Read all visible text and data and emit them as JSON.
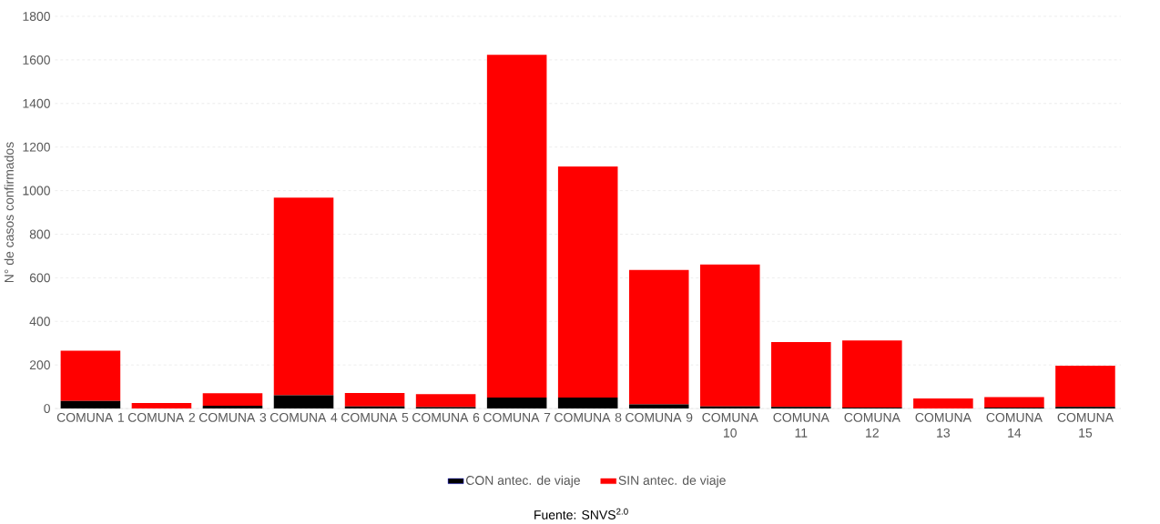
{
  "chart_data": {
    "type": "bar",
    "stacked": true,
    "ylabel": "N° de casos confirmados",
    "categories": [
      "COMUNA 1",
      "COMUNA 2",
      "COMUNA 3",
      "COMUNA 4",
      "COMUNA 5",
      "COMUNA 6",
      "COMUNA 7",
      "COMUNA 8",
      "COMUNA 9",
      "COMUNA 10",
      "COMUNA 11",
      "COMUNA 12",
      "COMUNA 13",
      "COMUNA 14",
      "COMUNA 15"
    ],
    "series": [
      {
        "name": "CON antec. de viaje",
        "color": "#000000",
        "values": [
          35,
          0,
          13,
          61,
          10,
          7,
          50,
          50,
          19,
          10,
          8,
          4,
          0,
          5,
          8
        ]
      },
      {
        "name": "SIN antec. de viaje",
        "color": "#ff0000",
        "values": [
          230,
          25,
          57,
          907,
          61,
          59,
          1573,
          1061,
          617,
          651,
          297,
          308,
          46,
          47,
          189
        ]
      }
    ],
    "ylim": [
      0,
      1800
    ],
    "yticks": [
      0,
      200,
      400,
      600,
      800,
      1000,
      1200,
      1400,
      1600,
      1800
    ],
    "grid": "y",
    "legend": "bottom",
    "annotations": [
      "Fuente: SNVS$^{2.0}$"
    ]
  }
}
